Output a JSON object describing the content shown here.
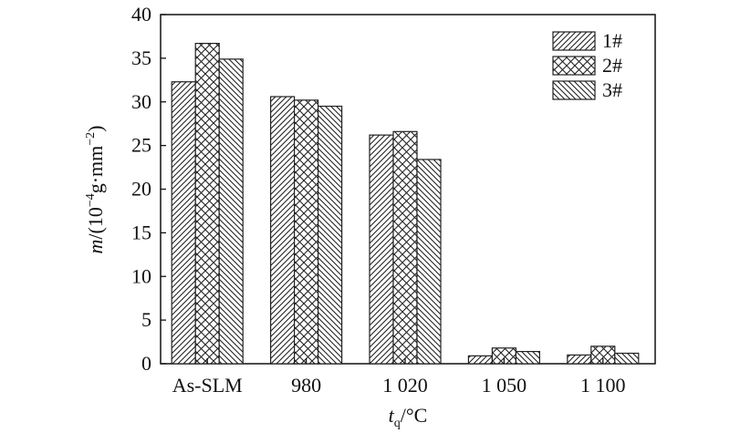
{
  "chart_data": {
    "type": "bar",
    "categories": [
      "As-SLM",
      "980",
      "1 020",
      "1 050",
      "1 100"
    ],
    "series": [
      {
        "name": "1#",
        "values": [
          32.3,
          30.6,
          26.2,
          0.9,
          1.0
        ],
        "pattern": "diag-right"
      },
      {
        "name": "2#",
        "values": [
          36.7,
          30.2,
          26.6,
          1.8,
          2.0
        ],
        "pattern": "crosshatch"
      },
      {
        "name": "3#",
        "values": [
          34.9,
          29.5,
          23.4,
          1.4,
          1.2
        ],
        "pattern": "diag-left"
      }
    ],
    "title": "",
    "xlabel": {
      "main": "t",
      "sub": "q",
      "rest": "/°C"
    },
    "ylabel": {
      "italic": "m",
      "base": "/(10",
      "exp1": "−4",
      "mid": "g·mm",
      "exp2": "−2",
      "end": ")"
    },
    "ylim": [
      0,
      40
    ],
    "yticks": [
      0,
      5,
      10,
      15,
      20,
      25,
      30,
      35,
      40
    ],
    "grid": false,
    "legend_position": "top-right",
    "colors": {
      "stroke": "#222222",
      "fill": "#ffffff"
    }
  }
}
